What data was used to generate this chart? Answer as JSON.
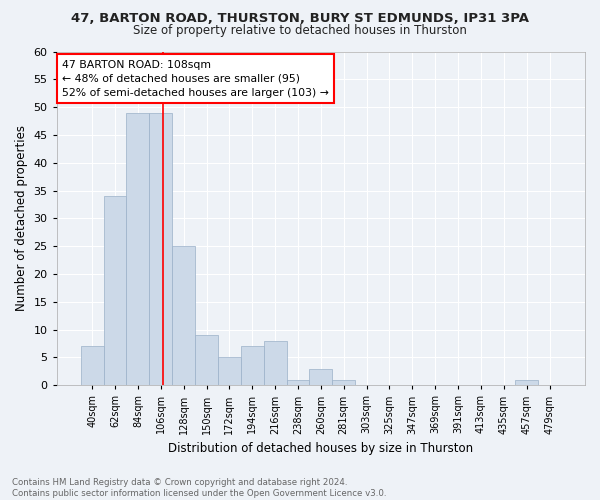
{
  "title1": "47, BARTON ROAD, THURSTON, BURY ST EDMUNDS, IP31 3PA",
  "title2": "Size of property relative to detached houses in Thurston",
  "xlabel": "Distribution of detached houses by size in Thurston",
  "ylabel": "Number of detached properties",
  "footnote": "Contains HM Land Registry data © Crown copyright and database right 2024.\nContains public sector information licensed under the Open Government Licence v3.0.",
  "bin_labels": [
    "40sqm",
    "62sqm",
    "84sqm",
    "106sqm",
    "128sqm",
    "150sqm",
    "172sqm",
    "194sqm",
    "216sqm",
    "238sqm",
    "260sqm",
    "281sqm",
    "303sqm",
    "325sqm",
    "347sqm",
    "369sqm",
    "391sqm",
    "413sqm",
    "435sqm",
    "457sqm",
    "479sqm"
  ],
  "bar_heights": [
    7,
    34,
    49,
    49,
    25,
    9,
    5,
    7,
    8,
    1,
    3,
    1,
    0,
    0,
    0,
    0,
    0,
    0,
    0,
    1,
    0
  ],
  "bar_color": "#ccd9e8",
  "bar_edge_color": "#9ab0c8",
  "red_line_bin": 3,
  "annotation_text": "47 BARTON ROAD: 108sqm\n← 48% of detached houses are smaller (95)\n52% of semi-detached houses are larger (103) →",
  "annotation_box_color": "white",
  "annotation_box_edge": "red",
  "background_color": "#eef2f7",
  "plot_background": "#eef2f7",
  "ylim": [
    0,
    60
  ],
  "yticks": [
    0,
    5,
    10,
    15,
    20,
    25,
    30,
    35,
    40,
    45,
    50,
    55,
    60
  ]
}
